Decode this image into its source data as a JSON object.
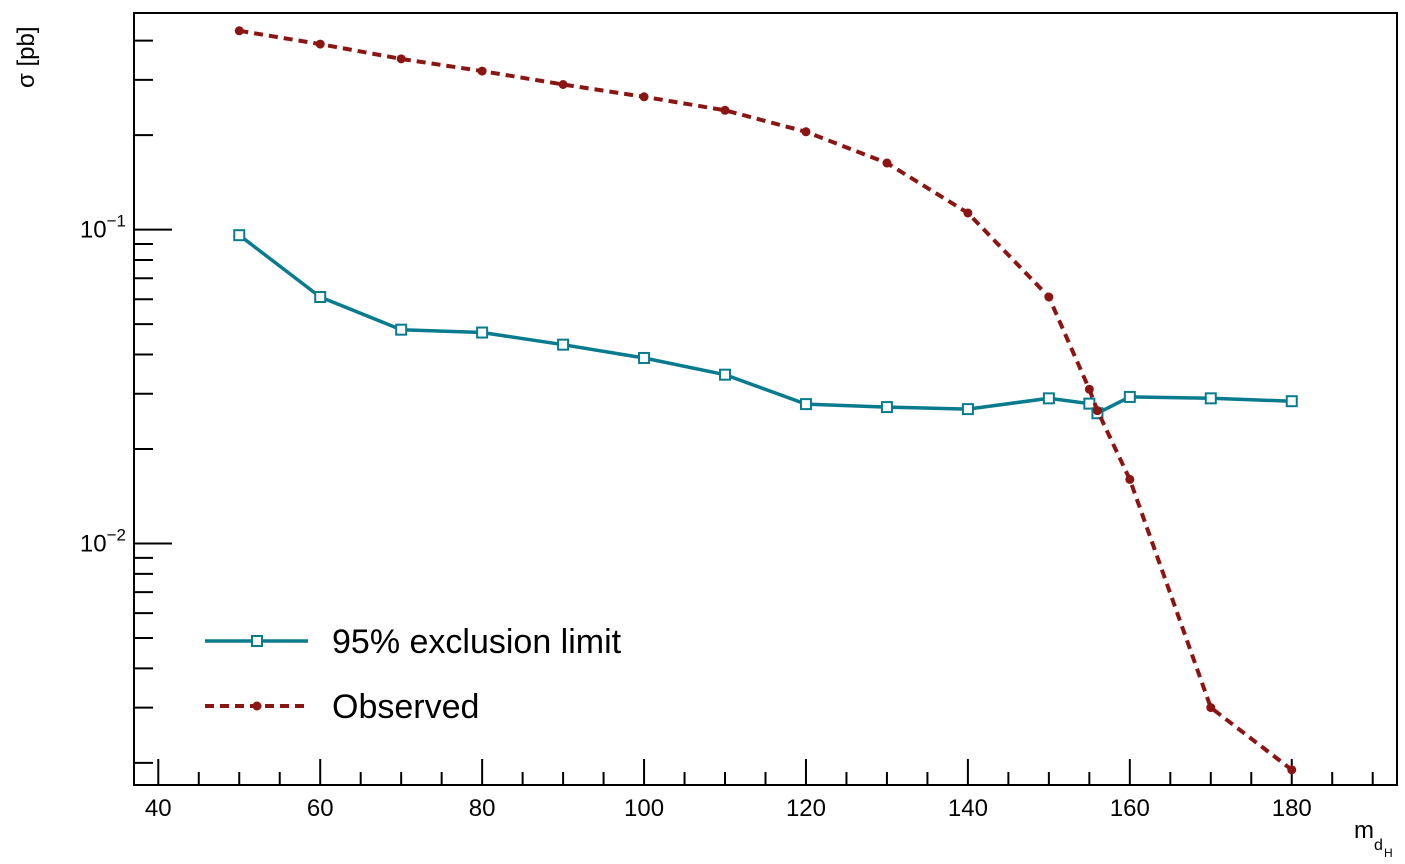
{
  "chart_data": {
    "type": "line",
    "title": "",
    "xlabel": "m",
    "xlabel_sub": "d",
    "xlabel_subsub": "H",
    "ylabel": "σ [pb]",
    "xlim": [
      37,
      193
    ],
    "ylim": [
      0.0017,
      0.49
    ],
    "yscale": "log",
    "grid": false,
    "legend_position": "bottom-left",
    "x_ticks": [
      40,
      60,
      80,
      100,
      120,
      140,
      160,
      180
    ],
    "y_ticks": [
      {
        "value": 0.1,
        "base": "10",
        "exp": "−1"
      },
      {
        "value": 0.01,
        "base": "10",
        "exp": "−2"
      }
    ],
    "series": [
      {
        "name": "95% exclusion limit",
        "color": "#087b8e",
        "line_style": "solid",
        "marker": "open-square",
        "x": [
          50,
          60,
          70,
          80,
          90,
          100,
          110,
          120,
          130,
          140,
          150,
          155,
          156,
          160,
          170,
          180
        ],
        "y": [
          0.096,
          0.061,
          0.048,
          0.047,
          0.043,
          0.039,
          0.0345,
          0.0278,
          0.0272,
          0.0268,
          0.029,
          0.0279,
          0.026,
          0.0293,
          0.029,
          0.0284
        ]
      },
      {
        "name": "Observed",
        "color": "#8b1512",
        "line_style": "dashed",
        "marker": "filled-circle",
        "x": [
          50,
          60,
          70,
          80,
          90,
          100,
          110,
          120,
          130,
          140,
          150,
          155,
          156,
          160,
          170,
          180
        ],
        "y": [
          0.43,
          0.39,
          0.35,
          0.32,
          0.29,
          0.265,
          0.24,
          0.205,
          0.163,
          0.113,
          0.061,
          0.031,
          0.0265,
          0.016,
          0.003,
          0.0019
        ]
      }
    ]
  }
}
